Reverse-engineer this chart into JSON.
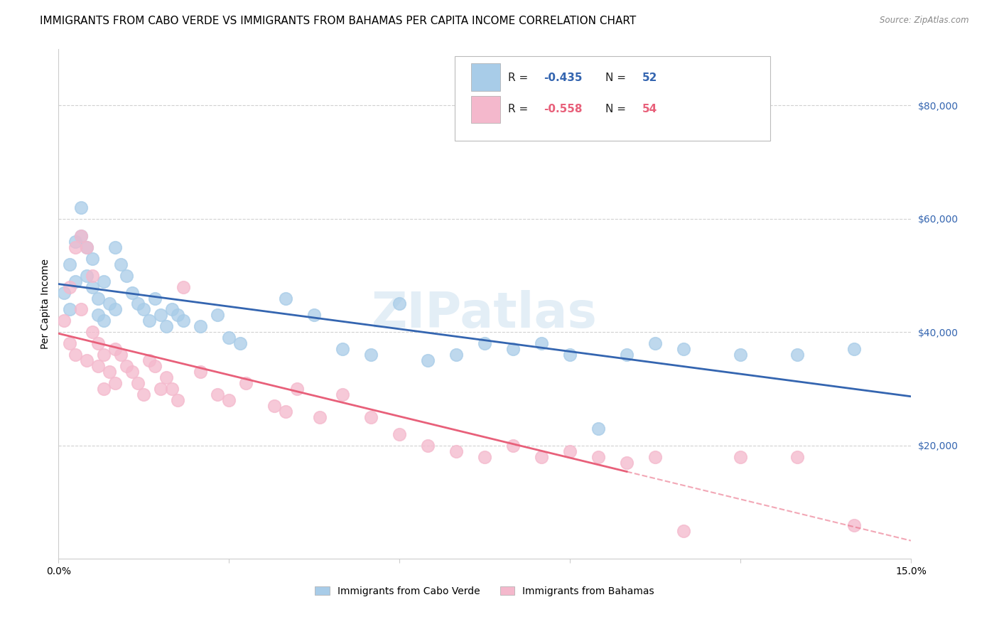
{
  "title": "IMMIGRANTS FROM CABO VERDE VS IMMIGRANTS FROM BAHAMAS PER CAPITA INCOME CORRELATION CHART",
  "source": "Source: ZipAtlas.com",
  "ylabel": "Per Capita Income",
  "x_min": 0.0,
  "x_max": 0.15,
  "y_min": 0,
  "y_max": 90000,
  "x_ticks": [
    0.0,
    0.03,
    0.06,
    0.09,
    0.12,
    0.15
  ],
  "x_tick_labels": [
    "0.0%",
    "",
    "",
    "",
    "",
    "15.0%"
  ],
  "y_ticks": [
    20000,
    40000,
    60000,
    80000
  ],
  "y_tick_labels": [
    "$20,000",
    "$40,000",
    "$60,000",
    "$80,000"
  ],
  "cabo_verde_R": "-0.435",
  "cabo_verde_N": "52",
  "bahamas_R": "-0.558",
  "bahamas_N": "54",
  "cabo_verde_color": "#a8cce8",
  "bahamas_color": "#f4b8cc",
  "cabo_verde_line_color": "#3465b0",
  "bahamas_line_color": "#e8607a",
  "cv_x": [
    0.001,
    0.002,
    0.002,
    0.003,
    0.003,
    0.004,
    0.004,
    0.005,
    0.005,
    0.006,
    0.006,
    0.007,
    0.007,
    0.008,
    0.008,
    0.009,
    0.01,
    0.01,
    0.011,
    0.012,
    0.013,
    0.014,
    0.015,
    0.016,
    0.017,
    0.018,
    0.019,
    0.02,
    0.021,
    0.022,
    0.025,
    0.028,
    0.03,
    0.032,
    0.04,
    0.045,
    0.05,
    0.055,
    0.06,
    0.065,
    0.07,
    0.075,
    0.08,
    0.085,
    0.09,
    0.095,
    0.1,
    0.105,
    0.11,
    0.12,
    0.13,
    0.14
  ],
  "cv_y": [
    47000,
    44000,
    52000,
    56000,
    49000,
    57000,
    62000,
    55000,
    50000,
    53000,
    48000,
    46000,
    43000,
    49000,
    42000,
    45000,
    44000,
    55000,
    52000,
    50000,
    47000,
    45000,
    44000,
    42000,
    46000,
    43000,
    41000,
    44000,
    43000,
    42000,
    41000,
    43000,
    39000,
    38000,
    46000,
    43000,
    37000,
    36000,
    45000,
    35000,
    36000,
    38000,
    37000,
    38000,
    36000,
    23000,
    36000,
    38000,
    37000,
    36000,
    36000,
    37000
  ],
  "bh_x": [
    0.001,
    0.002,
    0.002,
    0.003,
    0.003,
    0.004,
    0.004,
    0.005,
    0.005,
    0.006,
    0.006,
    0.007,
    0.007,
    0.008,
    0.008,
    0.009,
    0.01,
    0.01,
    0.011,
    0.012,
    0.013,
    0.014,
    0.015,
    0.016,
    0.017,
    0.018,
    0.019,
    0.02,
    0.021,
    0.022,
    0.025,
    0.028,
    0.03,
    0.033,
    0.038,
    0.04,
    0.042,
    0.046,
    0.05,
    0.055,
    0.06,
    0.065,
    0.07,
    0.075,
    0.08,
    0.085,
    0.09,
    0.095,
    0.1,
    0.105,
    0.11,
    0.12,
    0.13,
    0.14
  ],
  "bh_y": [
    42000,
    48000,
    38000,
    55000,
    36000,
    57000,
    44000,
    55000,
    35000,
    50000,
    40000,
    38000,
    34000,
    36000,
    30000,
    33000,
    37000,
    31000,
    36000,
    34000,
    33000,
    31000,
    29000,
    35000,
    34000,
    30000,
    32000,
    30000,
    28000,
    48000,
    33000,
    29000,
    28000,
    31000,
    27000,
    26000,
    30000,
    25000,
    29000,
    25000,
    22000,
    20000,
    19000,
    18000,
    20000,
    18000,
    19000,
    18000,
    17000,
    18000,
    5000,
    18000,
    18000,
    6000
  ],
  "watermark": "ZIPatlas",
  "background_color": "#ffffff",
  "grid_color": "#cccccc",
  "title_fontsize": 11,
  "axis_label_fontsize": 10,
  "tick_fontsize": 10,
  "legend_label_1": "Immigrants from Cabo Verde",
  "legend_label_2": "Immigrants from Bahamas"
}
